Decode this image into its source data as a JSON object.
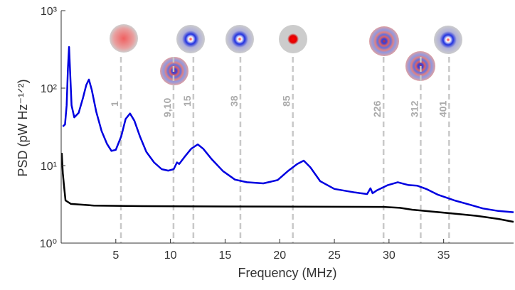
{
  "chart_data": {
    "type": "line",
    "xlabel": "Frequency (MHz)",
    "ylabel": "PSD (pW Hz⁻¹ᐟ²)",
    "xlim": [
      0,
      41.4
    ],
    "xticks": [
      5,
      10,
      15,
      20,
      25,
      30,
      35
    ],
    "ylim": [
      1,
      1000
    ],
    "log_y": true,
    "yticks": [
      {
        "value": 1,
        "label": "10⁰"
      },
      {
        "value": 10,
        "label": "10¹"
      },
      {
        "value": 100,
        "label": "10²"
      },
      {
        "value": 1000,
        "label": "10³"
      }
    ],
    "series": [
      {
        "color": "#0000e0",
        "x": [
          0.15,
          0.35,
          0.5,
          0.62,
          0.72,
          0.82,
          0.95,
          1.2,
          1.6,
          2.0,
          2.3,
          2.54,
          2.8,
          3.2,
          3.7,
          4.2,
          4.6,
          5.0,
          5.5,
          5.9,
          6.3,
          6.7,
          7.2,
          7.8,
          8.5,
          9.2,
          9.8,
          10.3,
          10.6,
          10.8,
          11.3,
          11.9,
          12.5,
          13.0,
          13.8,
          14.8,
          15.9,
          17.0,
          18.5,
          19.8,
          20.8,
          21.6,
          22.2,
          22.8,
          23.7,
          25.0,
          26.9,
          28.0,
          28.3,
          28.5,
          28.9,
          29.9,
          30.8,
          31.8,
          32.6,
          33.4,
          34.5,
          36.0,
          37.5,
          38.6,
          40.0,
          41.4
        ],
        "values": [
          32,
          34,
          60,
          180,
          340,
          160,
          60,
          42,
          48,
          75,
          110,
          129,
          95,
          50,
          28,
          19,
          15.5,
          16,
          24,
          40,
          47,
          38,
          24,
          15,
          11,
          9,
          8.6,
          9,
          11,
          10.5,
          13,
          16.5,
          18.8,
          16.5,
          12,
          8.5,
          6.6,
          6.1,
          5.9,
          6.5,
          8.6,
          10.5,
          11.6,
          9.5,
          6.3,
          5.0,
          4.5,
          4.3,
          5.1,
          4.4,
          4.8,
          5.6,
          6.1,
          5.6,
          5.5,
          5.0,
          4.2,
          3.55,
          3.1,
          2.8,
          2.6,
          2.5
        ]
      },
      {
        "color": "#000000",
        "x": [
          0.05,
          0.15,
          0.25,
          0.4,
          0.9,
          3.0,
          7.4,
          15.0,
          22.0,
          29.5,
          31.0,
          32.1,
          34.0,
          36.0,
          38.0,
          40.0,
          41.4
        ],
        "values": [
          14.6,
          8.0,
          5.7,
          3.55,
          3.2,
          3.05,
          3.0,
          2.97,
          2.95,
          2.93,
          2.85,
          2.7,
          2.55,
          2.4,
          2.25,
          2.05,
          1.88
        ]
      }
    ],
    "annotations": [
      {
        "x": 5.47,
        "label": "1"
      },
      {
        "x": 10.28,
        "label": "9,10"
      },
      {
        "x": 12.1,
        "label": "15"
      },
      {
        "x": 16.4,
        "label": "38"
      },
      {
        "x": 21.2,
        "label": "85"
      },
      {
        "x": 29.5,
        "label": "226"
      },
      {
        "x": 32.9,
        "label": "312"
      },
      {
        "x": 35.5,
        "label": "401"
      }
    ]
  }
}
